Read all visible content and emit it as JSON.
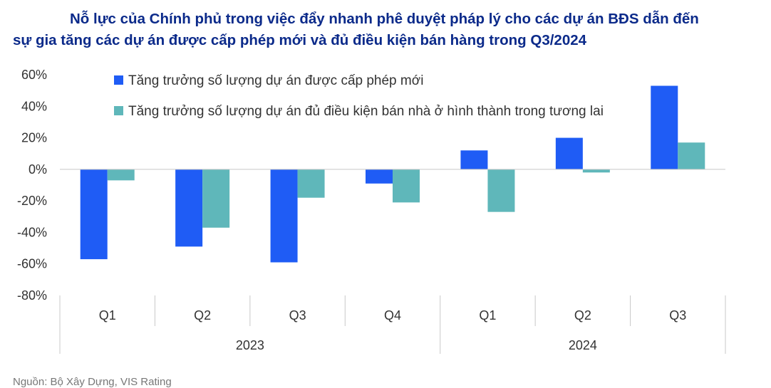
{
  "chart_data": {
    "type": "bar",
    "title_line1": "Nỗ lực của Chính phủ trong việc đẩy nhanh phê duyệt pháp lý cho các dự án BĐS dẫn đến",
    "title_line2": "sự gia tăng các dự án được cấp phép mới và đủ điều kiện bán hàng trong Q3/2024",
    "categories": [
      "Q1",
      "Q2",
      "Q3",
      "Q4",
      "Q1",
      "Q2",
      "Q3"
    ],
    "groups": [
      {
        "label": "2023",
        "count": 4
      },
      {
        "label": "2024",
        "count": 3
      }
    ],
    "series": [
      {
        "name": "Tăng trưởng số lượng dự án được cấp phép mới",
        "color": "#1f5cf5",
        "values": [
          -57,
          -49,
          -59,
          -9,
          12,
          20,
          53
        ]
      },
      {
        "name": "Tăng trưởng số lượng dự án đủ điều kiện bán nhà ở hình thành trong tương lai",
        "color": "#5fb7ba",
        "values": [
          -7,
          -37,
          -18,
          -21,
          -27,
          -2,
          17
        ]
      }
    ],
    "ylim": [
      -80,
      60
    ],
    "yticks": [
      "60%",
      "40%",
      "20%",
      "0%",
      "-20%",
      "-40%",
      "-60%",
      "-80%"
    ],
    "legend_position": "top-left",
    "xlabel": "",
    "ylabel": ""
  },
  "source": "Nguồn: Bộ Xây Dựng, VIS Rating"
}
